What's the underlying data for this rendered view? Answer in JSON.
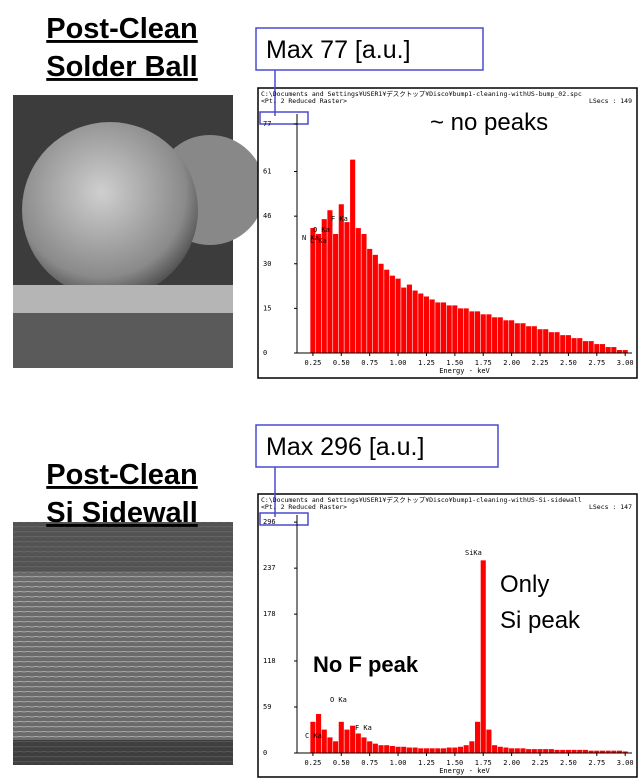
{
  "chart_data": [
    {
      "type": "bar",
      "panel_title": [
        "Post-Clean",
        "Solder Ball"
      ],
      "max_label": "Max 77 [a.u.]",
      "header": [
        "C:\\Documents and Settings¥USER1¥デスクトップ¥Disco¥bump1-cleaning-withUS-bump_02.spc",
        "<Pt.  2 Reduced Raster>",
        "LSecs : 149"
      ],
      "xlabel": "Energy - keV",
      "annotations": [
        "~ no peaks"
      ],
      "peak_labels": [
        "N Ka",
        "C Ka",
        "O Ka",
        "F Ka"
      ],
      "color": "#ff0000",
      "xlim": [
        0.11,
        3.06
      ],
      "ylim": [
        0,
        79
      ],
      "yticks": [
        0,
        15,
        30,
        46,
        61,
        77
      ],
      "xticks": [
        0.25,
        {
          "value": 0.5,
          "label": "0.50"
        },
        0.75,
        {
          "value": 1,
          "label": "1.00"
        },
        1.25,
        {
          "value": 1.5,
          "label": "1.50"
        },
        1.75,
        {
          "value": 2,
          "label": "2.00"
        },
        2.25,
        {
          "value": 2.5,
          "label": "2.50"
        },
        2.75,
        {
          "value": 3,
          "label": "3.00"
        }
      ],
      "x": [
        0.2,
        0.25,
        0.3,
        0.35,
        0.4,
        0.45,
        0.5,
        0.55,
        0.6,
        0.65,
        0.7,
        0.75,
        0.8,
        0.85,
        0.9,
        0.95,
        1.0,
        1.05,
        1.1,
        1.15,
        1.2,
        1.25,
        1.3,
        1.35,
        1.4,
        1.45,
        1.5,
        1.55,
        1.6,
        1.65,
        1.7,
        1.75,
        1.8,
        1.85,
        1.9,
        1.95,
        2.0,
        2.05,
        2.1,
        2.15,
        2.2,
        2.25,
        2.3,
        2.35,
        2.4,
        2.45,
        2.5,
        2.55,
        2.6,
        2.65,
        2.7,
        2.75,
        2.8,
        2.85,
        2.9,
        2.95,
        3.0
      ],
      "values": [
        0,
        42,
        40,
        45,
        48,
        40,
        50,
        44,
        65,
        42,
        40,
        35,
        33,
        30,
        28,
        26,
        25,
        22,
        23,
        21,
        20,
        19,
        18,
        17,
        17,
        16,
        16,
        15,
        15,
        14,
        14,
        13,
        13,
        12,
        12,
        11,
        11,
        10,
        10,
        9,
        9,
        8,
        8,
        7,
        7,
        6,
        6,
        5,
        5,
        4,
        4,
        3,
        3,
        2,
        2,
        1,
        1
      ]
    },
    {
      "type": "bar",
      "panel_title": [
        "Post-Clean",
        "Si Sidewall"
      ],
      "max_label": "Max 296 [a.u.]",
      "header": [
        "C:\\Documents and Settings¥USER1¥デスクトップ¥Disco¥bump1-cleaning-withUS-Si-sidewall",
        "<Pt.  2 Reduced Raster>",
        "LSecs : 147"
      ],
      "xlabel": "Energy - keV",
      "annotations": [
        "No F peak",
        "Only",
        "Si peak"
      ],
      "peak_labels": [
        "C Ka",
        "O Ka",
        "F Ka",
        "SiKa"
      ],
      "color": "#ff0000",
      "xlim": [
        0.11,
        3.06
      ],
      "ylim": [
        0,
        300
      ],
      "yticks": [
        0,
        59,
        118,
        178,
        237,
        296
      ],
      "xticks": [
        0.25,
        {
          "value": 0.5,
          "label": "0.50"
        },
        0.75,
        {
          "value": 1,
          "label": "1.00"
        },
        1.25,
        {
          "value": 1.5,
          "label": "1.50"
        },
        1.75,
        {
          "value": 2,
          "label": "2.00"
        },
        2.25,
        {
          "value": 2.5,
          "label": "2.50"
        },
        2.75,
        {
          "value": 3,
          "label": "3.00"
        }
      ],
      "x": [
        0.2,
        0.25,
        0.3,
        0.35,
        0.4,
        0.45,
        0.5,
        0.55,
        0.6,
        0.65,
        0.7,
        0.75,
        0.8,
        0.85,
        0.9,
        0.95,
        1.0,
        1.05,
        1.1,
        1.15,
        1.2,
        1.25,
        1.3,
        1.35,
        1.4,
        1.45,
        1.5,
        1.55,
        1.6,
        1.65,
        1.7,
        1.75,
        1.8,
        1.85,
        1.9,
        1.95,
        2.0,
        2.05,
        2.1,
        2.15,
        2.2,
        2.25,
        2.3,
        2.35,
        2.4,
        2.45,
        2.5,
        2.55,
        2.6,
        2.65,
        2.7,
        2.75,
        2.8,
        2.85,
        2.9,
        2.95,
        3.0
      ],
      "values": [
        0,
        40,
        50,
        30,
        20,
        15,
        40,
        30,
        35,
        25,
        20,
        15,
        12,
        10,
        10,
        9,
        8,
        8,
        7,
        7,
        6,
        6,
        6,
        6,
        6,
        7,
        7,
        8,
        10,
        15,
        40,
        247,
        30,
        10,
        8,
        7,
        6,
        6,
        6,
        5,
        5,
        5,
        5,
        5,
        4,
        4,
        4,
        4,
        4,
        4,
        3,
        3,
        3,
        3,
        3,
        3,
        2
      ]
    }
  ]
}
